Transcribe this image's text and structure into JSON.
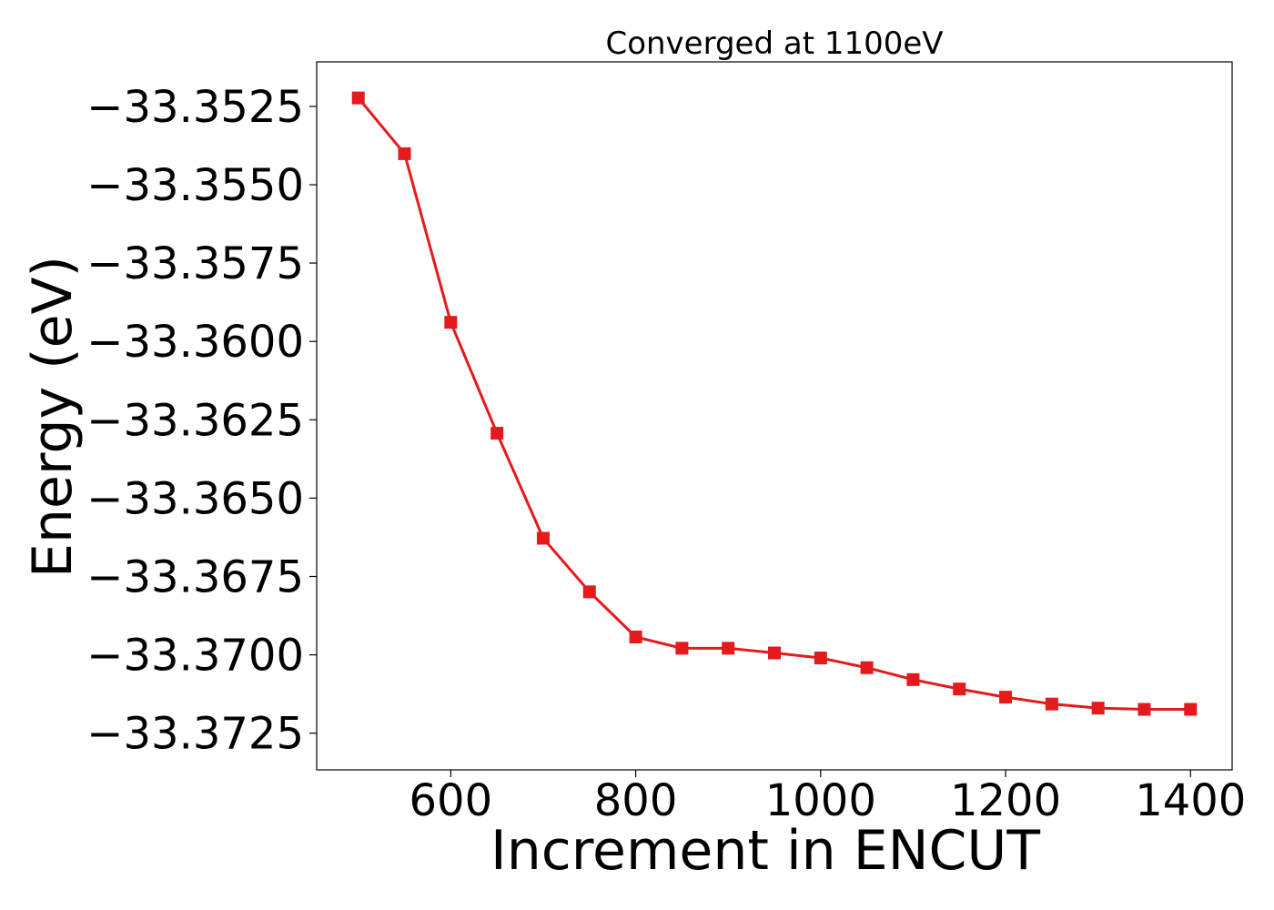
{
  "chart_data": {
    "type": "line",
    "title": "Converged at 1100eV",
    "xlabel": "Increment in ENCUT",
    "ylabel": "Energy (eV)",
    "xlim": [
      455,
      1445
    ],
    "ylim": [
      -33.37367,
      -33.35108
    ],
    "xticks": [
      600,
      800,
      1000,
      1200,
      1400
    ],
    "xtick_labels": [
      "600",
      "800",
      "1000",
      "1200",
      "1400"
    ],
    "yticks": [
      -33.3525,
      -33.355,
      -33.3575,
      -33.36,
      -33.3625,
      -33.365,
      -33.3675,
      -33.37,
      -33.3725
    ],
    "ytick_labels": [
      "−33.3525",
      "−33.3550",
      "−33.3575",
      "−33.3600",
      "−33.3625",
      "−33.3650",
      "−33.3675",
      "−33.3700",
      "−33.3725"
    ],
    "grid": false,
    "series": [
      {
        "color": "#e41a1c",
        "marker": "square",
        "x": [
          500,
          550,
          600,
          650,
          700,
          750,
          800,
          850,
          900,
          950,
          1000,
          1050,
          1100,
          1150,
          1200,
          1250,
          1300,
          1350,
          1400
        ],
        "y": [
          -33.35223,
          -33.35401,
          -33.35939,
          -33.36293,
          -33.36628,
          -33.36799,
          -33.36943,
          -33.36979,
          -33.36979,
          -33.36994,
          -33.3701,
          -33.37041,
          -33.37079,
          -33.37109,
          -33.37135,
          -33.37157,
          -33.3717,
          -33.37174,
          -33.37174
        ]
      }
    ]
  }
}
